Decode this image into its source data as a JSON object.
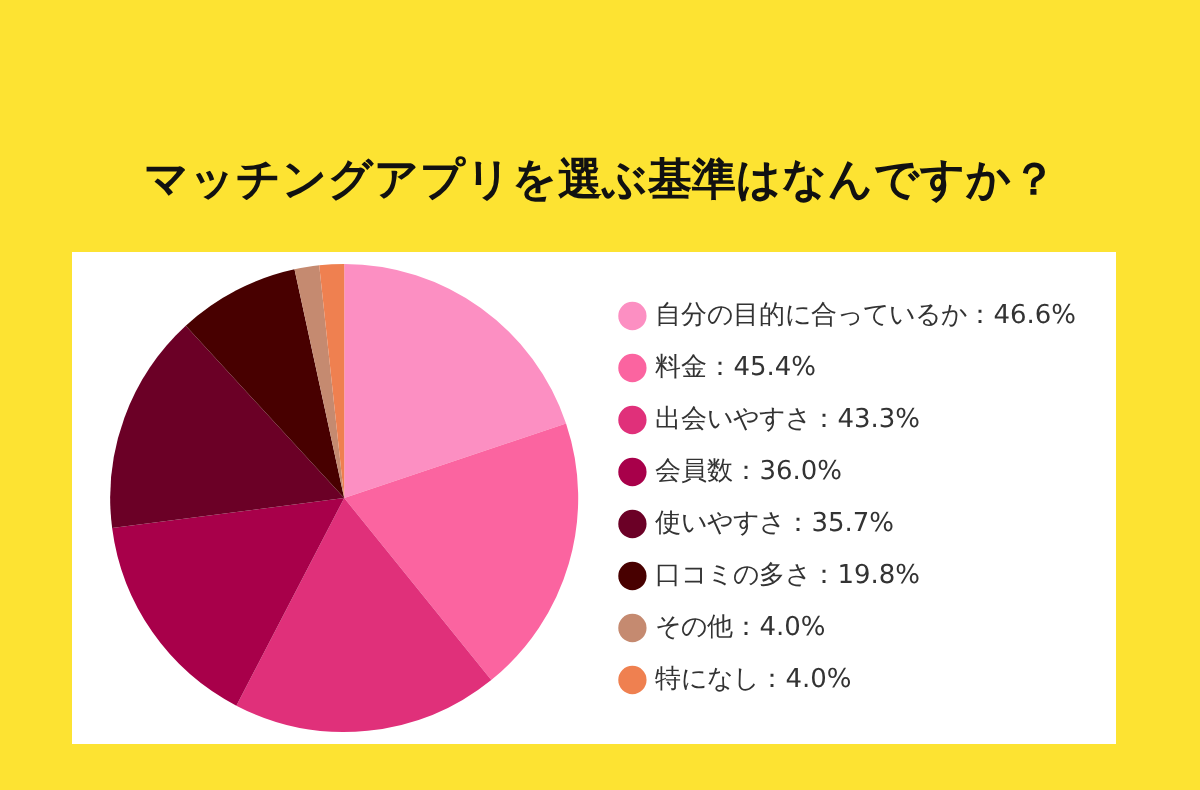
{
  "chart_data": {
    "type": "pie",
    "title": "マッチングアプリを選ぶ基準はなんですか？",
    "categories": [
      "自分の目的に合っているか：46.6%",
      "料金：45.4%",
      "出会いやすさ：43.3%",
      "会員数：36.0%",
      "使いやすさ：35.7%",
      "口コミの多さ：19.8%",
      "その他：4.0%",
      "特になし：4.0%"
    ],
    "values": [
      46.6,
      45.4,
      43.3,
      36.0,
      35.7,
      19.8,
      4.0,
      4.0
    ],
    "colors": [
      "#fc8fc2",
      "#fb64a0",
      "#e0307a",
      "#a8004a",
      "#6b0026",
      "#480000",
      "#c58a70",
      "#ef8050"
    ],
    "legend": "right"
  }
}
